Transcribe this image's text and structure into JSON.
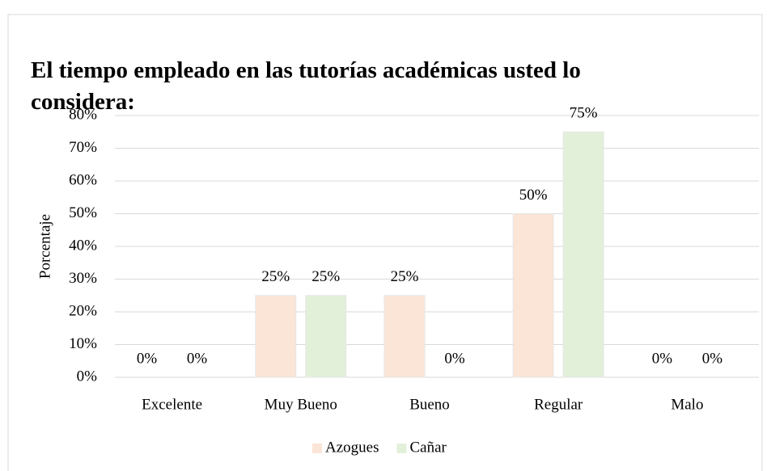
{
  "chart_data": {
    "type": "bar",
    "title": "El tiempo empleado en las tutorías académicas usted lo considera:",
    "ylabel": "Porcentaje",
    "categories": [
      "Excelente",
      "Muy Bueno",
      "Bueno",
      "Regular",
      "Malo"
    ],
    "series": [
      {
        "name": "Azogues",
        "color": "#fbe5d6",
        "values": [
          0,
          25,
          25,
          50,
          0
        ],
        "value_labels": [
          "0%",
          "25%",
          "25%",
          "50%",
          "0%"
        ]
      },
      {
        "name": "Cañar",
        "color": "#e2f0d9",
        "values": [
          0,
          25,
          0,
          75,
          0
        ],
        "value_labels": [
          "0%",
          "25%",
          "0%",
          "75%",
          "0%"
        ]
      }
    ],
    "ylim": [
      0,
      80
    ],
    "yticks": [
      {
        "value": 0,
        "label": "0%"
      },
      {
        "value": 10,
        "label": "10%"
      },
      {
        "value": 20,
        "label": "20%"
      },
      {
        "value": 30,
        "label": "30%"
      },
      {
        "value": 40,
        "label": "40%"
      },
      {
        "value": 50,
        "label": "50%"
      },
      {
        "value": 60,
        "label": "60%"
      },
      {
        "value": 70,
        "label": "70%"
      },
      {
        "value": 80,
        "label": "80%"
      }
    ],
    "grid": true,
    "legend": "bottom"
  }
}
